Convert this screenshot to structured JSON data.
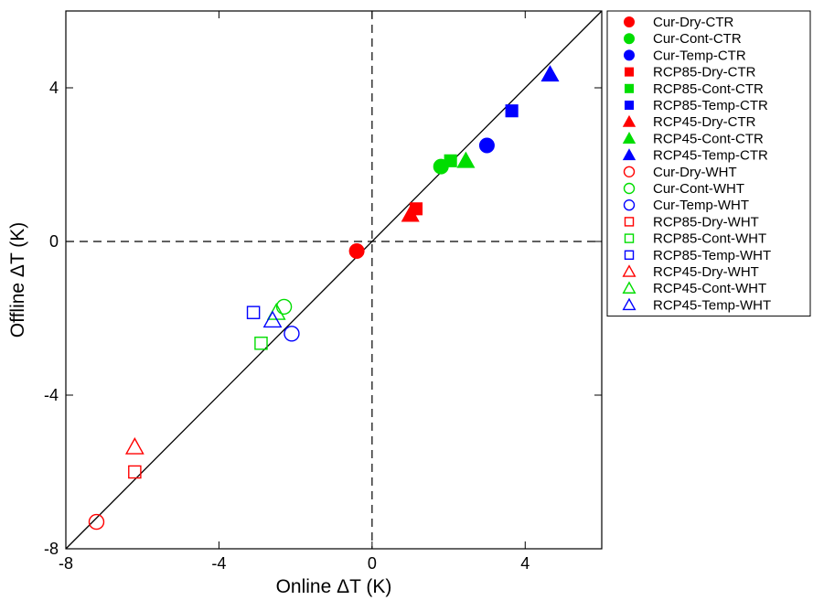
{
  "chart_data": {
    "type": "scatter",
    "title": "",
    "xlabel": "Online ΔT (K)",
    "ylabel": "Offline ΔT (K)",
    "xlim": [
      -8,
      6
    ],
    "ylim": [
      -8,
      6
    ],
    "xticks": [
      -8,
      -4,
      0,
      4
    ],
    "yticks": [
      -8,
      -4,
      0,
      4
    ],
    "xtick_labels": [
      "-8",
      "-4",
      "0",
      "4"
    ],
    "ytick_labels": [
      "-8",
      "-4",
      "0",
      "4"
    ],
    "grid": false,
    "legend_position": "outside-right",
    "reference_lines": [
      {
        "type": "one-to-one",
        "style": "solid"
      },
      {
        "type": "x=0",
        "style": "dashed"
      },
      {
        "type": "y=0",
        "style": "dashed"
      }
    ],
    "series": [
      {
        "name": "Cur-Dry-CTR",
        "color": "#ff0000",
        "marker": "circle",
        "filled": true,
        "x": -0.4,
        "y": -0.25
      },
      {
        "name": "Cur-Cont-CTR",
        "color": "#00dd00",
        "marker": "circle",
        "filled": true,
        "x": 1.8,
        "y": 1.95
      },
      {
        "name": "Cur-Temp-CTR",
        "color": "#0000ff",
        "marker": "circle",
        "filled": true,
        "x": 3.0,
        "y": 2.5
      },
      {
        "name": "RCP85-Dry-CTR",
        "color": "#ff0000",
        "marker": "square",
        "filled": true,
        "x": 1.15,
        "y": 0.85
      },
      {
        "name": "RCP85-Cont-CTR",
        "color": "#00dd00",
        "marker": "square",
        "filled": true,
        "x": 2.05,
        "y": 2.1
      },
      {
        "name": "RCP85-Temp-CTR",
        "color": "#0000ff",
        "marker": "square",
        "filled": true,
        "x": 3.65,
        "y": 3.4
      },
      {
        "name": "RCP45-Dry-CTR",
        "color": "#ff0000",
        "marker": "triangle",
        "filled": true,
        "x": 1.0,
        "y": 0.7
      },
      {
        "name": "RCP45-Cont-CTR",
        "color": "#00dd00",
        "marker": "triangle",
        "filled": true,
        "x": 2.45,
        "y": 2.1
      },
      {
        "name": "RCP45-Temp-CTR",
        "color": "#0000ff",
        "marker": "triangle",
        "filled": true,
        "x": 4.65,
        "y": 4.35
      },
      {
        "name": "Cur-Dry-WHT",
        "color": "#ff0000",
        "marker": "circle",
        "filled": false,
        "x": -7.2,
        "y": -7.3
      },
      {
        "name": "Cur-Cont-WHT",
        "color": "#00dd00",
        "marker": "circle",
        "filled": false,
        "x": -2.3,
        "y": -1.7
      },
      {
        "name": "Cur-Temp-WHT",
        "color": "#0000ff",
        "marker": "circle",
        "filled": false,
        "x": -2.1,
        "y": -2.4
      },
      {
        "name": "RCP85-Dry-WHT",
        "color": "#ff0000",
        "marker": "square",
        "filled": false,
        "x": -6.2,
        "y": -6.0
      },
      {
        "name": "RCP85-Cont-WHT",
        "color": "#00dd00",
        "marker": "square",
        "filled": false,
        "x": -2.9,
        "y": -2.65
      },
      {
        "name": "RCP85-Temp-WHT",
        "color": "#0000ff",
        "marker": "square",
        "filled": false,
        "x": -3.1,
        "y": -1.85
      },
      {
        "name": "RCP45-Dry-WHT",
        "color": "#ff0000",
        "marker": "triangle",
        "filled": false,
        "x": -6.2,
        "y": -5.35
      },
      {
        "name": "RCP45-Cont-WHT",
        "color": "#00dd00",
        "marker": "triangle",
        "filled": false,
        "x": -2.5,
        "y": -1.85
      },
      {
        "name": "RCP45-Temp-WHT",
        "color": "#0000ff",
        "marker": "triangle",
        "filled": false,
        "x": -2.6,
        "y": -2.05
      }
    ]
  }
}
